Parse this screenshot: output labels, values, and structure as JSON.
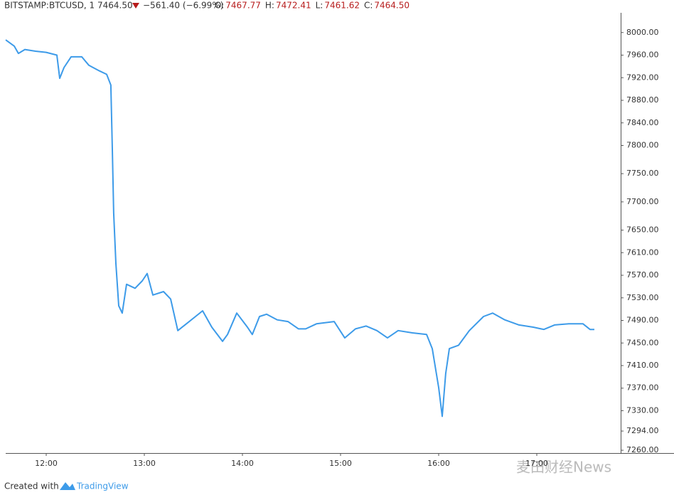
{
  "header": {
    "symbol": "BITSTAMP:BTCUSD, 1",
    "last": "7464.50",
    "change": "−561.40 (−6.99%)",
    "ohlc": [
      {
        "label": "O:",
        "value": "7467.77"
      },
      {
        "label": "H:",
        "value": "7472.41"
      },
      {
        "label": "L:",
        "value": "7461.62"
      },
      {
        "label": "C:",
        "value": "7464.50"
      }
    ]
  },
  "chart_data": {
    "type": "line",
    "x": [
      11.587,
      11.674,
      11.717,
      11.783,
      11.891,
      12,
      12.109,
      12.138,
      12.181,
      12.254,
      12.362,
      12.435,
      12.543,
      12.616,
      12.659,
      12.674,
      12.688,
      12.71,
      12.739,
      12.775,
      12.819,
      12.906,
      12.978,
      13.029,
      13.087,
      13.196,
      13.268,
      13.341,
      13.428,
      13.522,
      13.594,
      13.688,
      13.797,
      13.848,
      13.942,
      14.051,
      14.101,
      14.174,
      14.246,
      14.355,
      14.464,
      14.572,
      14.645,
      14.754,
      14.935,
      15.043,
      15.152,
      15.261,
      15.37,
      15.478,
      15.587,
      15.732,
      15.877,
      15.935,
      16,
      16.036,
      16.072,
      16.109,
      16.203,
      16.312,
      16.457,
      16.551,
      16.674,
      16.819,
      16.964,
      17.072,
      17.181,
      17.326,
      17.471,
      17.543,
      17.587
    ],
    "series": [
      {
        "name": "BTCUSD",
        "color": "#3d9be9",
        "values": [
          7987,
          7976,
          7963,
          7970,
          7967,
          7965,
          7960,
          7919,
          7938,
          7957,
          7957,
          7942,
          7932,
          7926,
          7907,
          7793,
          7680,
          7591,
          7516,
          7503,
          7554,
          7547,
          7560,
          7573,
          7535,
          7541,
          7528,
          7472,
          7484,
          7497,
          7507,
          7478,
          7453,
          7465,
          7503,
          7478,
          7465,
          7497,
          7501,
          7491,
          7488,
          7475,
          7475,
          7484,
          7488,
          7459,
          7475,
          7480,
          7472,
          7459,
          7472,
          7468,
          7465,
          7440,
          7371,
          7320,
          7396,
          7440,
          7446,
          7472,
          7497,
          7503,
          7491,
          7482,
          7478,
          7474,
          7482,
          7484,
          7484,
          7474,
          7474
        ]
      }
    ],
    "xlim": [
      11.587,
      17.855
    ],
    "xticks": [
      {
        "value": 12,
        "label": "12:00"
      },
      {
        "value": 13,
        "label": "13:00"
      },
      {
        "value": 14,
        "label": "14:00"
      },
      {
        "value": 15,
        "label": "15:00"
      },
      {
        "value": 16,
        "label": "16:00"
      },
      {
        "value": 17,
        "label": "17:00"
      }
    ],
    "ylim": [
      7255,
      8035
    ],
    "yticks": [
      {
        "value": 8000,
        "label": "8000.00"
      },
      {
        "value": 7960,
        "label": "7960.00"
      },
      {
        "value": 7920,
        "label": "7920.00"
      },
      {
        "value": 7880,
        "label": "7880.00"
      },
      {
        "value": 7840,
        "label": "7840.00"
      },
      {
        "value": 7800,
        "label": "7800.00"
      },
      {
        "value": 7750,
        "label": "7750.00"
      },
      {
        "value": 7700,
        "label": "7700.00"
      },
      {
        "value": 7650,
        "label": "7650.00"
      },
      {
        "value": 7610,
        "label": "7610.00"
      },
      {
        "value": 7570,
        "label": "7570.00"
      },
      {
        "value": 7530,
        "label": "7530.00"
      },
      {
        "value": 7490,
        "label": "7490.00"
      },
      {
        "value": 7450,
        "label": "7450.00"
      },
      {
        "value": 7410,
        "label": "7410.00"
      },
      {
        "value": 7370,
        "label": "7370.00"
      },
      {
        "value": 7330,
        "label": "7330.00"
      },
      {
        "value": 7294,
        "label": "7294.00"
      },
      {
        "value": 7260,
        "label": "7260.00"
      }
    ]
  },
  "footer": {
    "created": "Created with",
    "brand": "TradingView"
  },
  "watermark": "麦田财经News"
}
